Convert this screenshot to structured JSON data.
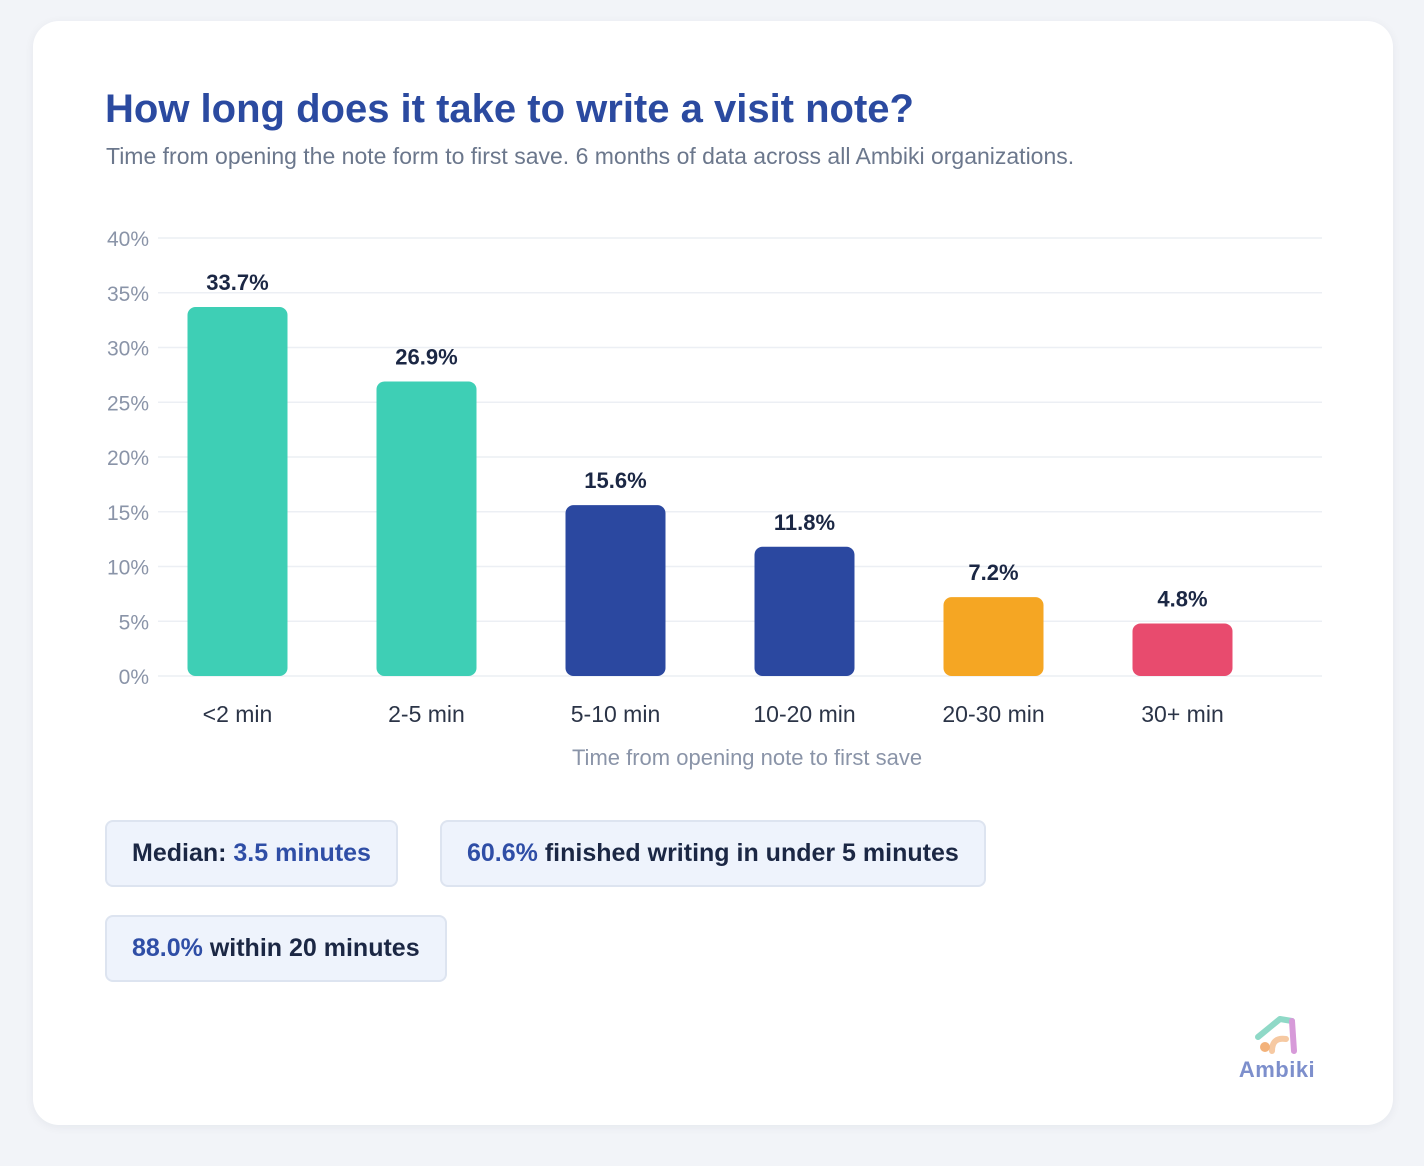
{
  "title": "How long does it take to write a visit note?",
  "subtitle": "Time from opening the note form to first save. 6 months of data across all Ambiki organizations.",
  "chart_data": {
    "type": "bar",
    "xlabel": "Time from opening note to first save",
    "ylabel": "",
    "ylim": [
      0,
      40
    ],
    "y_ticks": [
      "0%",
      "5%",
      "10%",
      "15%",
      "20%",
      "25%",
      "30%",
      "35%",
      "40%"
    ],
    "y_tick_values": [
      0,
      5,
      10,
      15,
      20,
      25,
      30,
      35,
      40
    ],
    "grid": true,
    "categories": [
      "<2 min",
      "2-5 min",
      "5-10 min",
      "10-20 min",
      "20-30 min",
      "30+ min"
    ],
    "values": [
      33.7,
      26.9,
      15.6,
      11.8,
      7.2,
      4.8
    ],
    "value_labels": [
      "33.7%",
      "26.9%",
      "15.6%",
      "11.8%",
      "7.2%",
      "4.8%"
    ],
    "colors": [
      "#3ecfb5",
      "#3ecfb5",
      "#2b48a0",
      "#2b48a0",
      "#f5a623",
      "#e84b6e"
    ]
  },
  "stats": {
    "median_label": "Median:",
    "median_value": "3.5 minutes",
    "under5_value": "60.6%",
    "under5_text": "finished writing in under 5 minutes",
    "within20_value": "88.0%",
    "within20_text": "within 20 minutes"
  },
  "logo": {
    "name": "Ambiki"
  }
}
